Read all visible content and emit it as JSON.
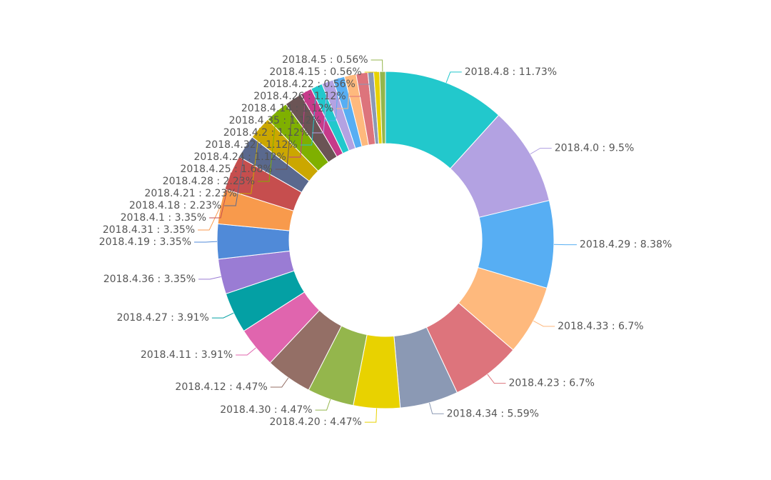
{
  "chart_data": {
    "type": "pie",
    "style": "donut",
    "start_angle_deg": 0,
    "direction": "clockwise",
    "label_format": "{name} : {percent}%",
    "slices": [
      {
        "name": "2018.4.8",
        "percent": 11.73,
        "color": "#22c8cc"
      },
      {
        "name": "2018.4.0",
        "percent": 9.5,
        "color": "#b3a2e2"
      },
      {
        "name": "2018.4.29",
        "percent": 8.38,
        "color": "#57aef3"
      },
      {
        "name": "2018.4.33",
        "percent": 6.7,
        "color": "#feb97d"
      },
      {
        "name": "2018.4.23",
        "percent": 6.7,
        "color": "#dd747c"
      },
      {
        "name": "2018.4.34",
        "percent": 5.59,
        "color": "#8b99b4"
      },
      {
        "name": "2018.4.20",
        "percent": 4.47,
        "color": "#e8d200"
      },
      {
        "name": "2018.4.30",
        "percent": 4.47,
        "color": "#94b64c"
      },
      {
        "name": "2018.4.12",
        "percent": 4.47,
        "color": "#946f66"
      },
      {
        "name": "2018.4.11",
        "percent": 3.91,
        "color": "#e065ae"
      },
      {
        "name": "2018.4.27",
        "percent": 3.91,
        "color": "#04a0a4"
      },
      {
        "name": "2018.4.36",
        "percent": 3.35,
        "color": "#9a7cd4"
      },
      {
        "name": "2018.4.19",
        "percent": 3.35,
        "color": "#508ad8"
      },
      {
        "name": "2018.4.31",
        "percent": 3.35,
        "color": "#f89a4c"
      },
      {
        "name": "2018.4.1",
        "percent": 3.35,
        "color": "#c64e4e"
      },
      {
        "name": "2018.4.18",
        "percent": 2.23,
        "color": "#5a698e"
      },
      {
        "name": "2018.4.21",
        "percent": 2.23,
        "color": "#cba700"
      },
      {
        "name": "2018.4.28",
        "percent": 2.23,
        "color": "#7fb000"
      },
      {
        "name": "2018.4.25",
        "percent": 1.68,
        "color": "#6b5455"
      },
      {
        "name": "2018.4.24",
        "percent": 1.12,
        "color": "#c73a8a"
      },
      {
        "name": "2018.4.32",
        "percent": 1.12,
        "color": "#22c8cc"
      },
      {
        "name": "2018.4.2",
        "percent": 1.12,
        "color": "#b3a2e2"
      },
      {
        "name": "2018.4.35",
        "percent": 1.12,
        "color": "#57aef3"
      },
      {
        "name": "2018.4.14",
        "percent": 1.12,
        "color": "#feb97d"
      },
      {
        "name": "2018.4.26",
        "percent": 1.12,
        "color": "#dd747c"
      },
      {
        "name": "2018.4.22",
        "percent": 0.56,
        "color": "#8b99b4"
      },
      {
        "name": "2018.4.15",
        "percent": 0.56,
        "color": "#e8d200"
      },
      {
        "name": "2018.4.5",
        "percent": 0.56,
        "color": "#94b64c"
      }
    ]
  }
}
